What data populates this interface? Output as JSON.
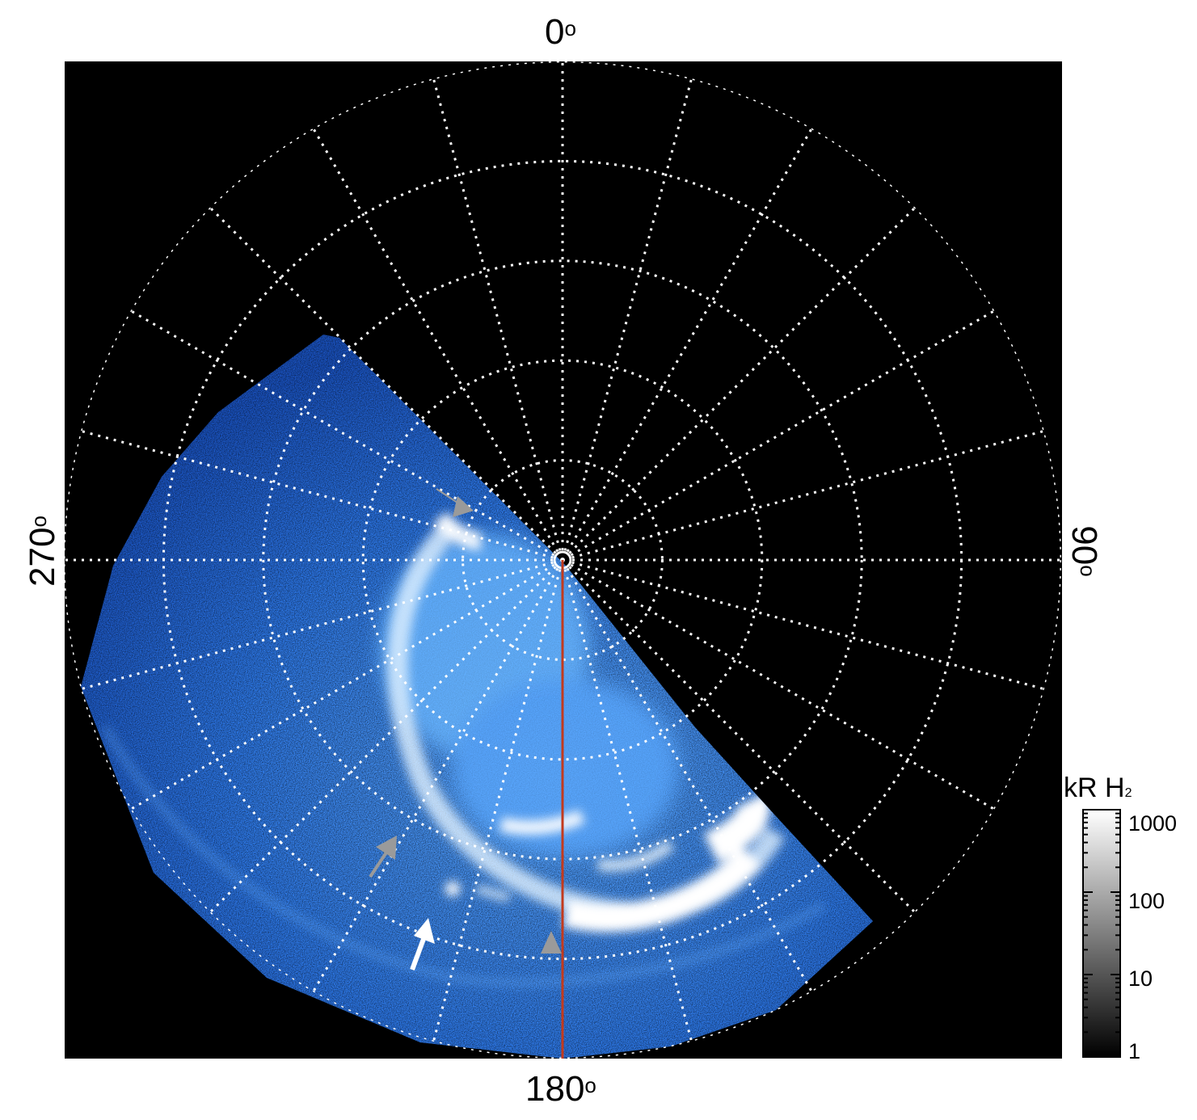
{
  "labels": {
    "top": "0",
    "bottom": "180",
    "left": "270",
    "right": "90",
    "degree_symbol": "o"
  },
  "colorbar": {
    "title": "kR H",
    "title_subscript": "2",
    "ticks": [
      "1000",
      "100",
      "10",
      "1"
    ],
    "scale": "log"
  },
  "colors": {
    "background": "#000000",
    "aurora": "#2a7bff",
    "bright": "#ffffff",
    "grid": "#ffffff",
    "meridian_line": "#c23a1e",
    "arrow_gray": "#9a9a9a",
    "arrow_white": "#ffffff"
  },
  "grid": {
    "meridian_spacing_deg": 15,
    "ring_count": 5,
    "style": "dotted"
  }
}
